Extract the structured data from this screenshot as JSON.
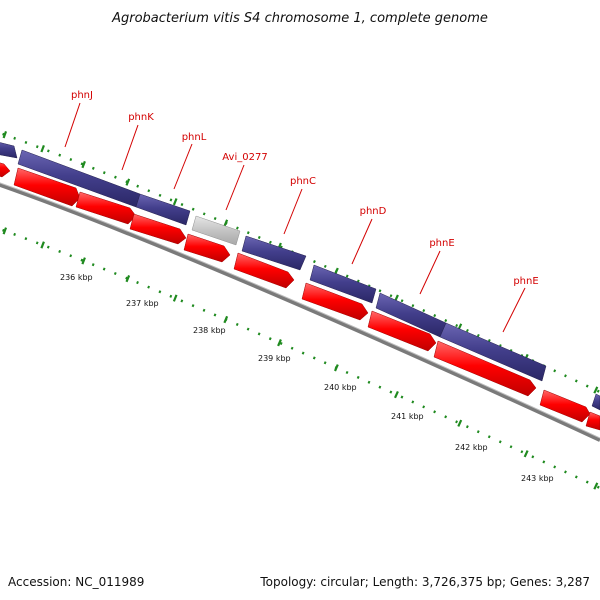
{
  "title": "Agrobacterium vitis S4 chromosome 1, complete genome",
  "footer": {
    "accession": "Accession: NC_011989",
    "summary": "Topology: circular; Length: 3,726,375 bp; Genes: 3,287"
  },
  "colors": {
    "outer_track": "#433f8c",
    "inner_track": "#ff0000",
    "unknown_gene": "#c4c4c4",
    "backbone": "#7a7a7a",
    "label": "#d30000",
    "tick": "#1f8a1f"
  },
  "genes": [
    {
      "name": "phnJ"
    },
    {
      "name": "phnK"
    },
    {
      "name": "phnL"
    },
    {
      "name": "Avi_0277"
    },
    {
      "name": "phnC"
    },
    {
      "name": "phnD"
    },
    {
      "name": "phnE"
    },
    {
      "name": "phnE"
    }
  ],
  "scale": [
    {
      "label": "236 kbp"
    },
    {
      "label": "237 kbp"
    },
    {
      "label": "238 kbp"
    },
    {
      "label": "239 kbp"
    },
    {
      "label": "240 kbp"
    },
    {
      "label": "241 kbp"
    },
    {
      "label": "242 kbp"
    },
    {
      "label": "243 kbp"
    }
  ]
}
